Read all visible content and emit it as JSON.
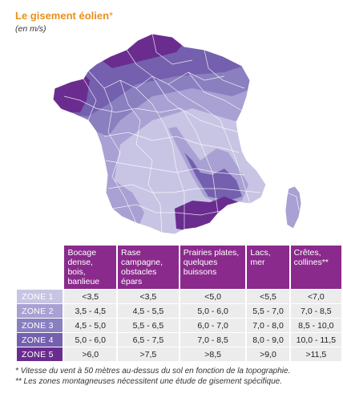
{
  "title": "Le gisement éolien",
  "title_star": "*",
  "subtitle": "(en m/s)",
  "colors": {
    "title": "#e8901c",
    "header": "#8a2a8c",
    "zone1": "#c8c4e4",
    "zone2": "#a9a0d3",
    "zone3": "#8a80c0",
    "zone4": "#7460ae",
    "zone5": "#6a2d8f"
  },
  "table": {
    "headers": [
      "Bocage dense, bois, banlieue",
      "Rase campagne, obstacles épars",
      "Prairies plates, quelques buissons",
      "Lacs, mer",
      "Crêtes, collines**"
    ],
    "rows": [
      {
        "zone": "ZONE 1",
        "values": [
          "<3,5",
          "<3,5",
          "<5,0",
          "<5,5",
          "<7,0"
        ]
      },
      {
        "zone": "ZONE 2",
        "values": [
          "3,5 - 4,5",
          "4,5 - 5,5",
          "5,0 - 6,0",
          "5,5 - 7,0",
          "7,0 - 8,5"
        ]
      },
      {
        "zone": "ZONE 3",
        "values": [
          "4,5 - 5,0",
          "5,5 - 6,5",
          "6,0 - 7,0",
          "7,0 - 8,0",
          "8,5 - 10,0"
        ]
      },
      {
        "zone": "ZONE 4",
        "values": [
          "5,0 - 6,0",
          "6,5 - 7,5",
          "7,0 - 8,5",
          "8,0 - 9,0",
          "10,0 - 11,5"
        ]
      },
      {
        "zone": "ZONE 5",
        "values": [
          ">6,0",
          ">7,5",
          ">8,5",
          ">9,0",
          ">11,5"
        ]
      }
    ]
  },
  "notes": [
    "* Vitesse du vent à 50 mètres au-dessus du sol en fonction de la topographie.",
    "** Les zones montagneuses nécessitent une étude de gisement spécifique."
  ]
}
